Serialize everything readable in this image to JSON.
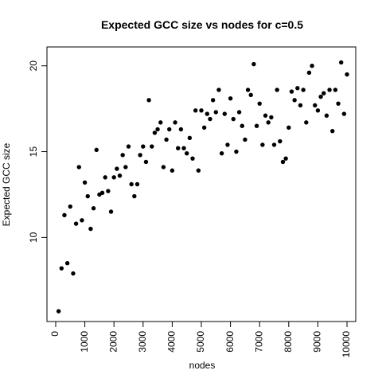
{
  "chart_data": {
    "type": "scatter",
    "title": "Expected GCC size vs nodes for c=0.5",
    "xlabel": "nodes",
    "ylabel": "Expected GCC size",
    "xlim": [
      -300,
      10300
    ],
    "ylim": [
      5.1,
      21.1
    ],
    "x_ticks": [
      0,
      1000,
      2000,
      3000,
      4000,
      5000,
      6000,
      7000,
      8000,
      9000,
      10000
    ],
    "y_ticks": [
      10,
      15,
      20
    ],
    "x_tick_labels": [
      "0",
      "1000",
      "2000",
      "3000",
      "4000",
      "5000",
      "6000",
      "7000",
      "8000",
      "9000",
      "10000"
    ],
    "y_tick_labels": [
      "10",
      "15",
      "20"
    ],
    "grid": false,
    "legend": "none",
    "point_color": "#000000",
    "x": [
      100,
      200,
      300,
      400,
      500,
      600,
      700,
      800,
      900,
      1000,
      1100,
      1200,
      1300,
      1400,
      1500,
      1600,
      1700,
      1800,
      1900,
      2000,
      2100,
      2200,
      2300,
      2400,
      2500,
      2600,
      2700,
      2800,
      2900,
      3000,
      3100,
      3200,
      3300,
      3400,
      3500,
      3600,
      3700,
      3800,
      3900,
      4000,
      4100,
      4200,
      4300,
      4400,
      4500,
      4600,
      4700,
      4800,
      4900,
      5000,
      5100,
      5200,
      5300,
      5400,
      5500,
      5600,
      5700,
      5800,
      5900,
      6000,
      6100,
      6200,
      6300,
      6400,
      6500,
      6600,
      6700,
      6800,
      6900,
      7000,
      7100,
      7200,
      7300,
      7400,
      7500,
      7600,
      7700,
      7800,
      7900,
      8000,
      8100,
      8200,
      8300,
      8400,
      8500,
      8600,
      8700,
      8800,
      8900,
      9000,
      9100,
      9200,
      9300,
      9400,
      9500,
      9600,
      9700,
      9800,
      9900,
      10000
    ],
    "y": [
      5.7,
      8.2,
      11.3,
      8.5,
      11.8,
      7.9,
      10.8,
      14.1,
      11.0,
      13.2,
      12.4,
      10.5,
      11.7,
      15.1,
      12.5,
      12.6,
      13.5,
      12.7,
      11.5,
      13.5,
      14.0,
      13.6,
      14.8,
      14.1,
      15.3,
      13.1,
      12.4,
      13.1,
      14.8,
      15.3,
      14.4,
      18.0,
      15.3,
      16.1,
      16.3,
      16.7,
      14.1,
      15.7,
      16.3,
      13.9,
      16.7,
      15.2,
      16.3,
      15.2,
      14.9,
      15.8,
      14.6,
      17.4,
      13.9,
      17.4,
      16.4,
      17.2,
      16.9,
      18.0,
      17.3,
      18.6,
      14.9,
      17.2,
      15.4,
      18.1,
      16.9,
      15.0,
      17.3,
      16.5,
      15.7,
      18.6,
      18.3,
      20.1,
      16.5,
      17.8,
      15.4,
      17.1,
      16.7,
      17.0,
      15.4,
      18.6,
      15.6,
      14.4,
      14.6,
      16.4,
      18.5,
      18.0,
      18.7,
      17.7,
      18.6,
      16.7,
      19.6,
      20.0,
      17.7,
      17.4,
      18.2,
      18.4,
      17.1,
      18.6,
      16.2,
      18.6,
      17.8,
      20.2,
      17.2,
      19.5
    ]
  }
}
